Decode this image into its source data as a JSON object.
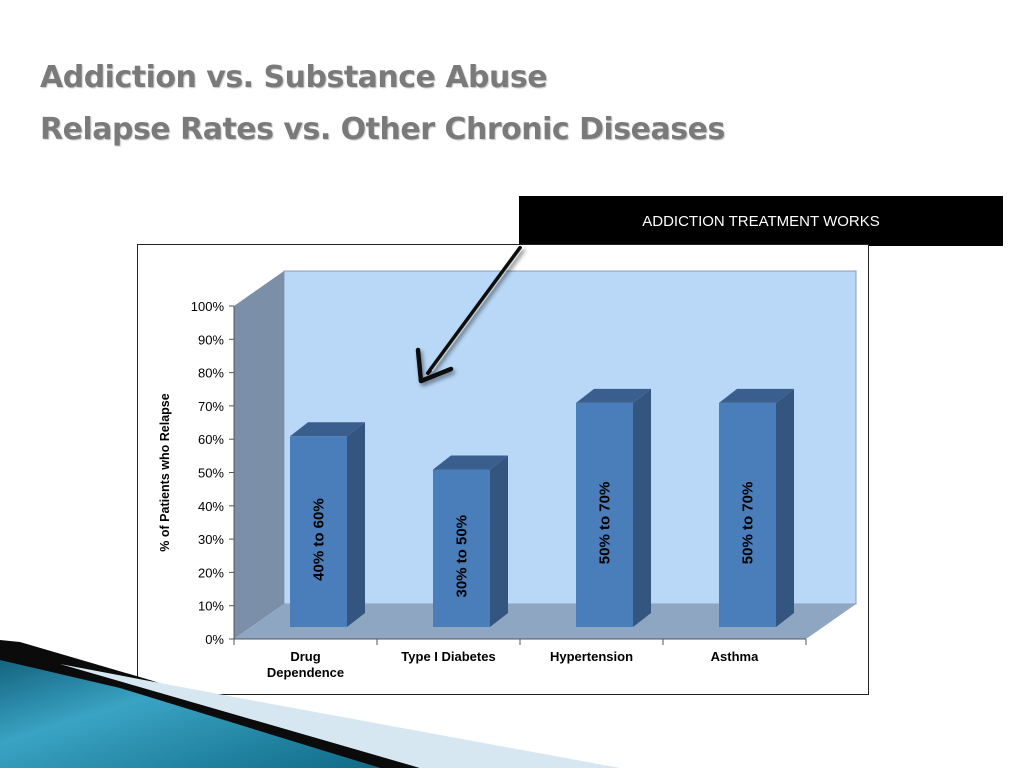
{
  "slide": {
    "title_line1": "Addiction vs. Substance Abuse",
    "title_line2": "Relapse Rates vs. Other Chronic Diseases"
  },
  "banner": {
    "text": "ADDICTION TREATMENT WORKS"
  },
  "colors": {
    "bar_front": "#4a7ebb",
    "bar_top": "#3a5f8e",
    "bar_side": "#34557f",
    "plot_back": "#b9d8f7",
    "plot_side": "#7c8fa8",
    "plot_floor": "#8ea6c1",
    "title": "#7a7a7a"
  },
  "chart_data": {
    "type": "bar",
    "title": "",
    "xlabel": "",
    "ylabel": "% of Patients who Relapse",
    "ylim": [
      0,
      100
    ],
    "yticks": [
      "0%",
      "10%",
      "20%",
      "30%",
      "40%",
      "50%",
      "60%",
      "70%",
      "80%",
      "90%",
      "100%"
    ],
    "categories": [
      "Drug Dependence",
      "Type I Diabetes",
      "Hypertension",
      "Asthma"
    ],
    "category_lines": [
      [
        "Drug",
        "Dependence"
      ],
      [
        "Type I Diabetes"
      ],
      [
        "Hypertension"
      ],
      [
        "Asthma"
      ]
    ],
    "values": [
      60,
      50,
      70,
      70
    ],
    "data_labels": [
      "40%  to  60%",
      "30%  to  50%",
      "50%  to 70%",
      "50%  to 70%"
    ],
    "grid": false,
    "legend": "none",
    "three_d": true
  }
}
